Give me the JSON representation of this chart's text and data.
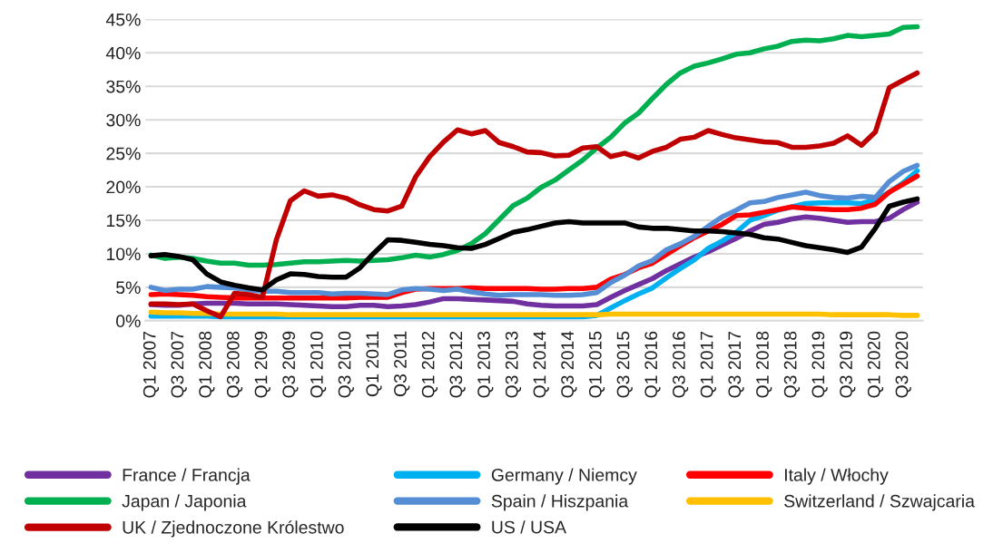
{
  "chart_data": {
    "type": "line",
    "categories": [
      "Q1 2007",
      null,
      "Q3 2007",
      null,
      "Q1 2008",
      null,
      "Q3 2008",
      null,
      "Q1 2009",
      null,
      "Q3 2009",
      null,
      "Q1 2010",
      null,
      "Q3 2010",
      null,
      "Q1 2011",
      null,
      "Q3 2011",
      null,
      "Q1 2012",
      null,
      "Q3 2012",
      null,
      "Q1 2013",
      null,
      "Q3 2013",
      null,
      "Q1 2014",
      null,
      "Q3 2014",
      null,
      "Q1 2015",
      null,
      "Q3 2015",
      null,
      "Q1 2016",
      null,
      "Q3 2016",
      null,
      "Q1 2017",
      null,
      "Q3 2017",
      null,
      "Q1 2018",
      null,
      "Q3 2018",
      null,
      "Q1 2019",
      null,
      "Q3 2019",
      null,
      "Q1 2020",
      null,
      "Q3 2020",
      null
    ],
    "series": [
      {
        "name": "France / Francja",
        "color": "#7030a0",
        "values": [
          2.4,
          2.3,
          2.3,
          2.5,
          2.6,
          2.6,
          2.6,
          2.5,
          2.5,
          2.5,
          2.4,
          2.3,
          2.2,
          2.1,
          2.1,
          2.3,
          2.3,
          2.1,
          2.2,
          2.4,
          2.8,
          3.3,
          3.3,
          3.2,
          3.1,
          3.0,
          2.9,
          2.5,
          2.3,
          2.2,
          2.2,
          2.2,
          2.4,
          3.5,
          4.5,
          5.4,
          6.3,
          7.5,
          8.5,
          9.5,
          10.3,
          11.3,
          12.3,
          13.4,
          14.4,
          14.7,
          15.2,
          15.5,
          15.3,
          15.0,
          14.7,
          14.8,
          14.8,
          15.3,
          16.6,
          17.7
        ]
      },
      {
        "name": "Germany / Niemcy",
        "color": "#00b0f0",
        "values": [
          0.7,
          0.7,
          0.7,
          0.7,
          0.7,
          0.6,
          0.6,
          0.6,
          0.6,
          0.6,
          0.6,
          0.6,
          0.6,
          0.6,
          0.6,
          0.6,
          0.6,
          0.6,
          0.6,
          0.6,
          0.6,
          0.6,
          0.6,
          0.6,
          0.6,
          0.6,
          0.6,
          0.6,
          0.6,
          0.6,
          0.6,
          0.6,
          0.8,
          1.9,
          3.0,
          4.0,
          4.9,
          6.4,
          7.8,
          9.1,
          10.8,
          11.9,
          13.2,
          15.0,
          15.7,
          16.5,
          17.0,
          17.5,
          17.6,
          17.6,
          17.6,
          17.5,
          18.0,
          19.2,
          20.6,
          22.4
        ]
      },
      {
        "name": "Italy / Włochy",
        "color": "#ff0000",
        "values": [
          3.9,
          4.0,
          3.9,
          3.8,
          3.6,
          3.5,
          3.4,
          3.4,
          3.4,
          3.4,
          3.4,
          3.4,
          3.4,
          3.4,
          3.4,
          3.5,
          3.5,
          3.5,
          4.2,
          4.7,
          4.8,
          4.8,
          4.8,
          4.9,
          4.8,
          4.8,
          4.8,
          4.8,
          4.7,
          4.7,
          4.8,
          4.8,
          5.0,
          6.2,
          6.9,
          7.9,
          8.6,
          9.9,
          11.2,
          12.4,
          13.4,
          14.4,
          15.7,
          15.8,
          16.2,
          16.6,
          17.0,
          16.8,
          16.7,
          16.6,
          16.6,
          16.8,
          17.4,
          19.2,
          20.4,
          21.6
        ]
      },
      {
        "name": "Japan / Japonia",
        "color": "#00b050",
        "values": [
          9.8,
          9.3,
          9.5,
          9.3,
          8.9,
          8.6,
          8.6,
          8.3,
          8.3,
          8.4,
          8.6,
          8.8,
          8.8,
          8.9,
          9.0,
          8.9,
          9.0,
          9.1,
          9.4,
          9.8,
          9.5,
          9.9,
          10.5,
          11.5,
          13.0,
          15.1,
          17.2,
          18.3,
          19.9,
          21.0,
          22.5,
          24.0,
          25.8,
          27.4,
          29.5,
          31.0,
          33.2,
          35.3,
          37.0,
          38.0,
          38.5,
          39.1,
          39.8,
          40.0,
          40.6,
          41.0,
          41.7,
          41.9,
          41.8,
          42.1,
          42.6,
          42.4,
          42.6,
          42.8,
          43.8,
          43.9
        ]
      },
      {
        "name": "Spain / Hiszpania",
        "color": "#558ed5",
        "values": [
          5.0,
          4.5,
          4.7,
          4.7,
          5.1,
          5.0,
          4.9,
          4.6,
          4.4,
          4.4,
          4.2,
          4.2,
          4.2,
          4.0,
          4.1,
          4.1,
          4.0,
          3.9,
          4.6,
          4.8,
          4.7,
          4.5,
          4.7,
          4.3,
          4.0,
          3.8,
          3.9,
          3.9,
          3.9,
          3.8,
          3.8,
          3.9,
          4.2,
          5.7,
          6.8,
          8.2,
          9.0,
          10.6,
          11.5,
          12.6,
          14.1,
          15.5,
          16.5,
          17.6,
          17.8,
          18.4,
          18.8,
          19.2,
          18.7,
          18.4,
          18.3,
          18.6,
          18.4,
          20.8,
          22.3,
          23.2
        ]
      },
      {
        "name": "Switzerland / Szwajcaria",
        "color": "#ffc000",
        "values": [
          1.3,
          1.2,
          1.2,
          1.1,
          1.1,
          1.0,
          1.0,
          1.0,
          1.0,
          1.0,
          0.9,
          0.9,
          0.9,
          0.9,
          0.9,
          0.9,
          0.9,
          0.9,
          0.9,
          0.9,
          0.9,
          0.9,
          0.9,
          0.9,
          0.9,
          0.9,
          0.9,
          0.9,
          0.9,
          0.9,
          0.9,
          0.9,
          0.9,
          1.0,
          1.0,
          1.0,
          1.0,
          1.0,
          1.0,
          1.0,
          1.0,
          1.0,
          1.0,
          1.0,
          1.0,
          1.0,
          1.0,
          1.0,
          1.0,
          0.9,
          0.9,
          0.9,
          0.9,
          0.9,
          0.8,
          0.8
        ]
      },
      {
        "name": "UK / Zjednoczone Królestwo",
        "color": "#c00000",
        "values": [
          2.5,
          2.5,
          2.4,
          2.5,
          1.5,
          0.6,
          4.1,
          3.9,
          3.5,
          12.1,
          17.9,
          19.4,
          18.6,
          18.8,
          18.3,
          17.3,
          16.6,
          16.4,
          17.1,
          21.5,
          24.5,
          26.7,
          28.5,
          27.9,
          28.4,
          26.6,
          26.0,
          25.2,
          25.1,
          24.6,
          24.7,
          25.8,
          26.0,
          24.5,
          25.0,
          24.3,
          25.3,
          25.9,
          27.1,
          27.4,
          28.4,
          27.8,
          27.3,
          27.0,
          26.7,
          26.6,
          25.9,
          25.9,
          26.1,
          26.5,
          27.6,
          26.2,
          28.2,
          34.8,
          35.9,
          37.0
        ]
      },
      {
        "name": "US / USA",
        "color": "#000000",
        "values": [
          9.7,
          9.9,
          9.6,
          9.1,
          7.0,
          5.8,
          5.3,
          4.9,
          4.6,
          6.1,
          7.0,
          6.9,
          6.6,
          6.5,
          6.5,
          7.9,
          10.1,
          12.1,
          12.0,
          11.7,
          11.4,
          11.2,
          10.9,
          10.8,
          11.4,
          12.3,
          13.2,
          13.6,
          14.1,
          14.6,
          14.8,
          14.6,
          14.6,
          14.6,
          14.6,
          14.0,
          13.8,
          13.8,
          13.6,
          13.4,
          13.4,
          13.3,
          13.1,
          12.9,
          12.4,
          12.2,
          11.7,
          11.2,
          10.9,
          10.6,
          10.2,
          11.0,
          13.8,
          17.1,
          17.7,
          18.2
        ]
      }
    ],
    "ylim": [
      0,
      45
    ],
    "yticks": [
      {
        "value": 0,
        "label": "0%"
      },
      {
        "value": 5,
        "label": "5%"
      },
      {
        "value": 10,
        "label": "10%"
      },
      {
        "value": 15,
        "label": "15%"
      },
      {
        "value": 20,
        "label": "20%"
      },
      {
        "value": 25,
        "label": "25%"
      },
      {
        "value": 30,
        "label": "30%"
      },
      {
        "value": 35,
        "label": "35%"
      },
      {
        "value": 40,
        "label": "40%"
      },
      {
        "value": 45,
        "label": "45%"
      }
    ],
    "grid": "y",
    "legend": "bottom",
    "line_style": "solid",
    "marker": "none"
  }
}
